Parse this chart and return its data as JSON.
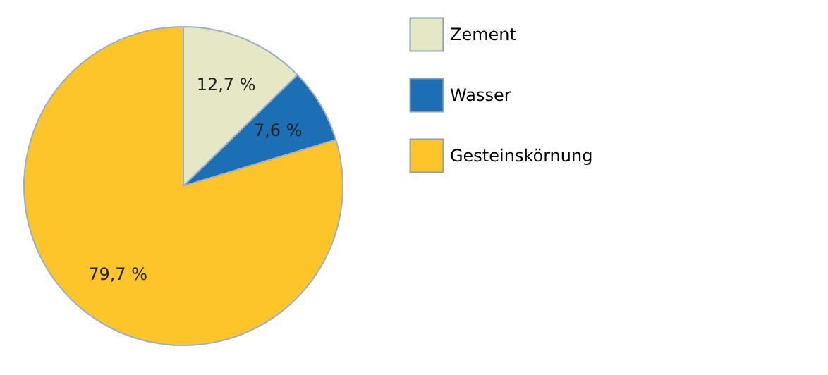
{
  "chart_data": {
    "type": "pie",
    "categories": [
      "Zement",
      "Wasser",
      "Gesteinskörnung"
    ],
    "values": [
      12.7,
      7.6,
      79.7
    ],
    "colors": [
      "#e6e7c5",
      "#1c6fb4",
      "#fdc52a"
    ],
    "value_labels": [
      "12,7 %",
      "7,6 %",
      "79,7 %"
    ],
    "legend": "right"
  }
}
